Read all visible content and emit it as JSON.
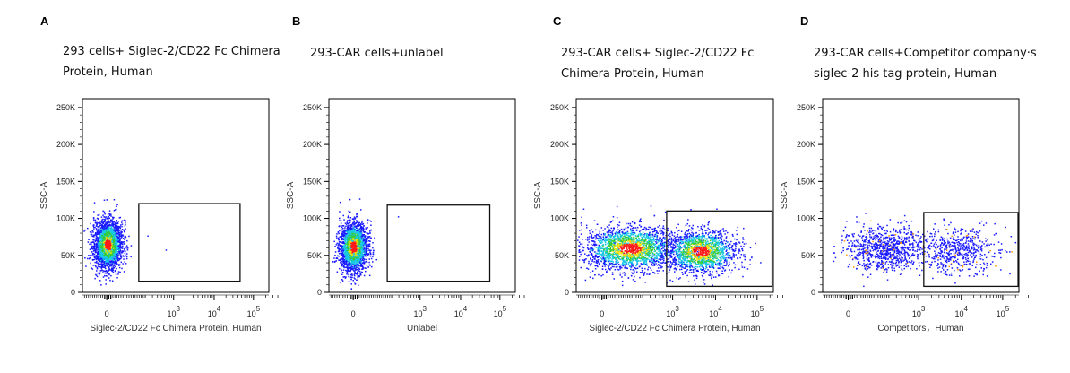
{
  "chart_data": [
    {
      "type": "scatter",
      "letter": "A",
      "title_lines": [
        "293 cells+ Siglec-2/CD22 Fc Chimera",
        "Protein, Human"
      ],
      "xlabel": "Siglec-2/CD22 Fc Chimera Protein, Human",
      "ylabel": "SSC-A",
      "x_scale": "biexponential",
      "xlim_transformed": [
        -0.6,
        4.0
      ],
      "ylim": [
        0,
        262000
      ],
      "yticks": [
        {
          "v": 0,
          "label": "0"
        },
        {
          "v": 50000,
          "label": "50K"
        },
        {
          "v": 100000,
          "label": "100K"
        },
        {
          "v": 150000,
          "label": "150K"
        },
        {
          "v": 200000,
          "label": "200K"
        },
        {
          "v": 250000,
          "label": "250K"
        }
      ],
      "xticks": [
        {
          "t": 0,
          "label": "0",
          "exp": ""
        },
        {
          "t": 1.65,
          "label": "10",
          "exp": "3"
        },
        {
          "t": 2.65,
          "label": "10",
          "exp": "4"
        },
        {
          "t": 3.62,
          "label": "10",
          "exp": "5"
        }
      ],
      "gate": {
        "x": [
          0.79,
          3.29
        ],
        "y": [
          15000,
          120000
        ]
      },
      "populations": [
        {
          "x": 0.02,
          "y": 65000,
          "sx": 0.17,
          "sy": 16000,
          "n": 2600,
          "density_colors": true
        }
      ],
      "outliers": [
        {
          "x": 1.0,
          "y": 77000
        },
        {
          "x": 1.45,
          "y": 58000
        }
      ]
    },
    {
      "type": "scatter",
      "letter": "B",
      "title_lines": [
        "293-CAR cells+unlabel"
      ],
      "xlabel": "Unlabel",
      "ylabel": "SSC-A",
      "x_scale": "biexponential",
      "xlim_transformed": [
        -0.6,
        4.0
      ],
      "ylim": [
        0,
        262000
      ],
      "yticks": [
        {
          "v": 0,
          "label": "0"
        },
        {
          "v": 50000,
          "label": "50K"
        },
        {
          "v": 100000,
          "label": "100K"
        },
        {
          "v": 150000,
          "label": "150K"
        },
        {
          "v": 200000,
          "label": "200K"
        },
        {
          "v": 250000,
          "label": "250K"
        }
      ],
      "xticks": [
        {
          "t": 0,
          "label": "0",
          "exp": ""
        },
        {
          "t": 1.65,
          "label": "10",
          "exp": "3"
        },
        {
          "t": 2.65,
          "label": "10",
          "exp": "4"
        },
        {
          "t": 3.62,
          "label": "10",
          "exp": "5"
        }
      ],
      "gate": {
        "x": [
          0.84,
          3.37
        ],
        "y": [
          15000,
          118000
        ]
      },
      "populations": [
        {
          "x": 0.0,
          "y": 62000,
          "sx": 0.17,
          "sy": 17000,
          "n": 2600,
          "density_colors": true
        }
      ],
      "outliers": [
        {
          "x": 1.1,
          "y": 103000
        }
      ]
    },
    {
      "type": "scatter",
      "letter": "C",
      "title_lines": [
        "293-CAR cells+ Siglec-2/CD22 Fc",
        "Chimera Protein, Human"
      ],
      "xlabel": "Siglec-2/CD22 Fc Chimera Protein, Human",
      "ylabel": "SSC-A",
      "x_scale": "biexponential",
      "xlim_transformed": [
        -0.6,
        4.0
      ],
      "ylim": [
        0,
        262000
      ],
      "yticks": [
        {
          "v": 0,
          "label": "0"
        },
        {
          "v": 50000,
          "label": "50K"
        },
        {
          "v": 100000,
          "label": "100K"
        },
        {
          "v": 150000,
          "label": "150K"
        },
        {
          "v": 200000,
          "label": "200K"
        },
        {
          "v": 250000,
          "label": "250K"
        }
      ],
      "xticks": [
        {
          "t": 0,
          "label": "0",
          "exp": ""
        },
        {
          "t": 1.65,
          "label": "10",
          "exp": "3"
        },
        {
          "t": 2.65,
          "label": "10",
          "exp": "4"
        },
        {
          "t": 3.62,
          "label": "10",
          "exp": "5"
        }
      ],
      "gate": {
        "x": [
          1.51,
          3.97
        ],
        "y": [
          8000,
          110000
        ]
      },
      "populations": [
        {
          "x": 0.65,
          "y": 60000,
          "sx": 0.55,
          "sy": 15000,
          "n": 2200,
          "density_colors": true
        },
        {
          "x": 2.3,
          "y": 56000,
          "sx": 0.42,
          "sy": 15000,
          "n": 1500,
          "density_colors": true
        }
      ],
      "outliers": []
    },
    {
      "type": "scatter",
      "letter": "D",
      "title_lines": [
        "293-CAR cells+Competitor company·s",
        "siglec-2 his tag protein, Human"
      ],
      "xlabel": "Competitors，Human",
      "ylabel": "SSC-A",
      "x_scale": "biexponential",
      "xlim_transformed": [
        -0.6,
        4.0
      ],
      "ylim": [
        0,
        262000
      ],
      "yticks": [
        {
          "v": 0,
          "label": "0"
        },
        {
          "v": 50000,
          "label": "50K"
        },
        {
          "v": 100000,
          "label": "100K"
        },
        {
          "v": 150000,
          "label": "150K"
        },
        {
          "v": 200000,
          "label": "200K"
        },
        {
          "v": 250000,
          "label": "250K"
        }
      ],
      "xticks": [
        {
          "t": 0,
          "label": "0",
          "exp": ""
        },
        {
          "t": 1.65,
          "label": "10",
          "exp": "3"
        },
        {
          "t": 2.65,
          "label": "10",
          "exp": "4"
        },
        {
          "t": 3.62,
          "label": "10",
          "exp": "5"
        }
      ],
      "gate": {
        "x": [
          1.77,
          3.98
        ],
        "y": [
          8000,
          108000
        ]
      },
      "populations": [
        {
          "x": 0.85,
          "y": 60000,
          "sx": 0.45,
          "sy": 15000,
          "n": 900,
          "density_colors": false
        },
        {
          "x": 2.55,
          "y": 57000,
          "sx": 0.45,
          "sy": 15000,
          "n": 550,
          "density_colors": false
        }
      ],
      "outliers": []
    }
  ],
  "colors": {
    "blue": "#1a1aff",
    "cyan": "#19c8e6",
    "green": "#33cc33",
    "yellow": "#f0e000",
    "orange": "#ff9900",
    "red": "#ff1a1a",
    "axis": "#000000"
  }
}
